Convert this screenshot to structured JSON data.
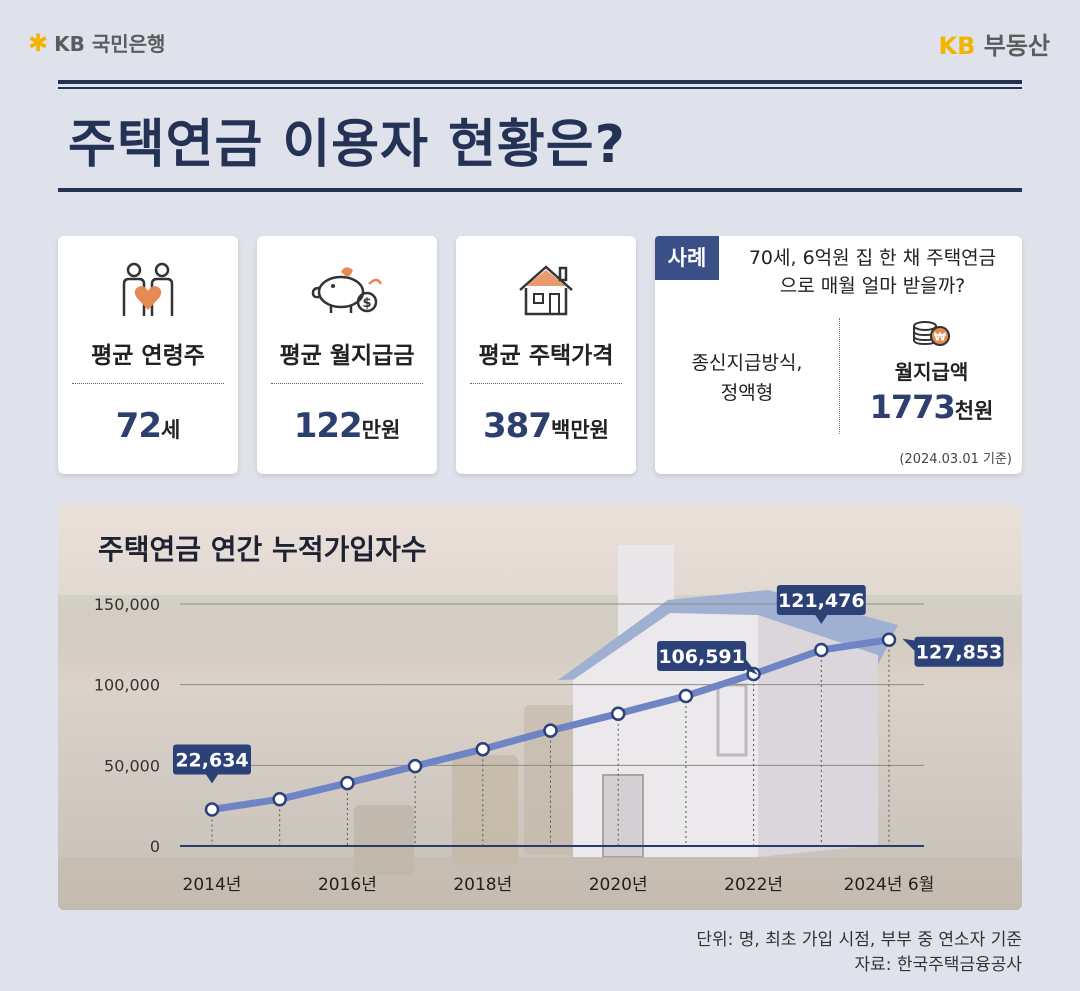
{
  "brand": {
    "left_logo": "KB 국민은행",
    "right_logo_kb": "KB",
    "right_logo_text": "부동산"
  },
  "title": "주택연금 이용자 현황은?",
  "stats": [
    {
      "label": "평균 연령주",
      "value": "72",
      "unit": "세",
      "icon": "couple-heart-icon"
    },
    {
      "label": "평균 월지급금",
      "value": "122",
      "unit": "만원",
      "icon": "piggy-bank-icon"
    },
    {
      "label": "평균 주택가격",
      "value": "387",
      "unit": "백만원",
      "icon": "house-icon"
    }
  ],
  "case": {
    "tag": "사례",
    "question_line1": "70세, 6억원 집 한 채 주택연금",
    "question_line2": "으로 매월 얼마 받을까?",
    "method_line1": "종신지급방식,",
    "method_line2": "정액형",
    "monthly_label": "월지급액",
    "monthly_value": "1773",
    "monthly_unit": "천원",
    "date_note": "(2024.03.01 기준)"
  },
  "chart_data": {
    "type": "line",
    "title": "주택연금 연간 누적가입자수",
    "x": [
      "2014",
      "2015",
      "2016",
      "2017",
      "2018",
      "2019",
      "2020",
      "2021",
      "2022",
      "2023",
      "2024.06"
    ],
    "series": [
      {
        "values": [
          22634,
          29000,
          39000,
          49500,
          60000,
          71500,
          82000,
          93000,
          106591,
          121476,
          127853
        ]
      }
    ],
    "x_tick_labels": [
      "2014년",
      "",
      "2016년",
      "",
      "2018년",
      "",
      "2020년",
      "",
      "2022년",
      "",
      "2024년 6월"
    ],
    "y_ticks": [
      "0",
      "50,000",
      "100,000",
      "150,000"
    ],
    "y_tick_values": [
      0,
      50000,
      100000,
      150000
    ],
    "ylim": [
      0,
      150000
    ],
    "data_labels": [
      {
        "index": 0,
        "text": "22,634"
      },
      {
        "index": 8,
        "text": "106,591"
      },
      {
        "index": 9,
        "text": "121,476"
      },
      {
        "index": 10,
        "text": "127,853"
      }
    ],
    "grid": true,
    "line_color": "#6f84c4",
    "label_color": "#2b4178"
  },
  "footnote": {
    "unit": "단위: 명, 최초 가입 시점, 부부 중 연소자 기준",
    "source": "자료: 한국주택금융공사"
  }
}
